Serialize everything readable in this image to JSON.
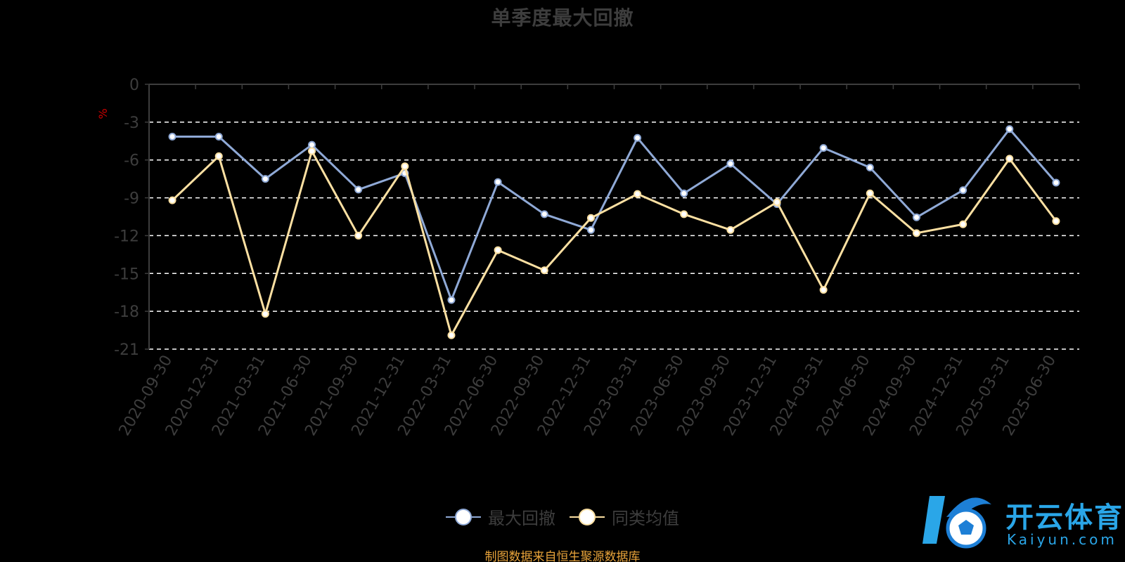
{
  "chart_data": {
    "type": "line",
    "title": "单季度最大回撤",
    "ylabel": "%",
    "xlabel": "",
    "ylim": [
      -21,
      0
    ],
    "yticks": [
      0,
      -3,
      -6,
      -9,
      -12,
      -15,
      -18,
      -21
    ],
    "grid": "dashed horizontal",
    "legend_position": "bottom",
    "categories": [
      "2020-09-30",
      "2020-12-31",
      "2021-03-31",
      "2021-06-30",
      "2021-09-30",
      "2021-12-31",
      "2022-03-31",
      "2022-06-30",
      "2022-09-30",
      "2022-12-31",
      "2023-03-31",
      "2023-06-30",
      "2023-09-30",
      "2023-12-31",
      "2024-03-31",
      "2024-06-30",
      "2024-09-30",
      "2024-12-31",
      "2025-03-31",
      "2025-06-30"
    ],
    "series": [
      {
        "name": "最大回撤",
        "color": "#8fa9d6",
        "values": [
          -4.15,
          -4.15,
          -7.5,
          -4.8,
          -8.35,
          -7.05,
          -17.1,
          -7.75,
          -10.3,
          -11.55,
          -4.25,
          -8.65,
          -6.3,
          -9.5,
          -5.05,
          -6.6,
          -10.55,
          -8.4,
          -3.55,
          -7.8
        ]
      },
      {
        "name": "同类均值",
        "color": "#fce0a2",
        "values": [
          -9.2,
          -5.7,
          -18.2,
          -5.3,
          -12.0,
          -6.5,
          -19.9,
          -13.15,
          -14.75,
          -10.6,
          -8.7,
          -10.3,
          -11.55,
          -9.35,
          -16.3,
          -8.65,
          -11.8,
          -11.1,
          -5.9,
          -10.85
        ]
      }
    ]
  },
  "source_note": "制图数据来自恒生聚源数据库",
  "watermark": {
    "name": "开云体育",
    "domain": "Kaiyun.com"
  },
  "colors": {
    "background": "#000000",
    "title": "#3d3d3d",
    "axis_text": "#3d3d3d",
    "unit_label": "#cc0000",
    "grid": "#ffffff",
    "source_note": "#e8a33a",
    "watermark": "#2aa6e8"
  }
}
